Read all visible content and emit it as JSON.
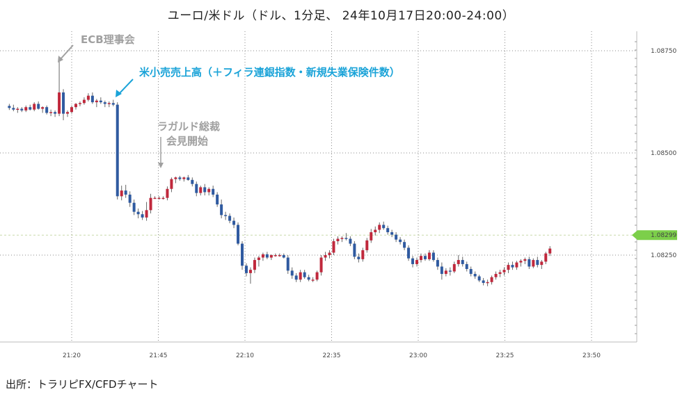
{
  "title": "ユーロ/米ドル（ドル、1分足、 24年10月17日20:00-24:00）",
  "source": "出所：トラリピFX/CFDチャート",
  "colors": {
    "up": "#c0283c",
    "down": "#2f5aa0",
    "grid": "#888888",
    "current_marker": "#7ccf4a",
    "annotation_blue": "#1aa3d8",
    "annotation_gray": "#a0a0a0",
    "current_line": "#c9d9a8"
  },
  "chart_data": {
    "type": "candlestick",
    "title": "ユーロ/米ドル（ドル、1分足、 24年10月17日20:00-24:00）",
    "xlabel": "",
    "ylabel": "",
    "ylim": [
      1.0818,
      1.0878
    ],
    "y_ticks": [
      "1.08750",
      "1.08500",
      "1.08250"
    ],
    "x_ticks": [
      "21:20",
      "21:45",
      "22:10",
      "22:35",
      "23:00",
      "23:25",
      "23:50"
    ],
    "x_tick_minutes": [
      0,
      25,
      50,
      75,
      100,
      125,
      150
    ],
    "current_price": "1.08299",
    "current_value": 1.08299,
    "annotations": [
      {
        "text": "ECB理事会",
        "color": "gray"
      },
      {
        "text": "米小売売上高（＋フィラ連銀指数・新規失業保険件数）",
        "color": "blue"
      },
      {
        "text": "ラガルド総裁",
        "color": "gray"
      },
      {
        "text": "会見開始",
        "color": "gray"
      }
    ],
    "anchors": [
      [
        -18,
        1.08615
      ],
      [
        -14,
        1.0861
      ],
      [
        -10,
        1.0862
      ],
      [
        -7,
        1.0861
      ],
      [
        -5,
        1.0862
      ],
      [
        -3,
        1.086
      ],
      [
        -2,
        1.0861
      ],
      [
        -1,
        1.0865
      ],
      [
        0,
        1.0861
      ],
      [
        2,
        1.0862
      ],
      [
        3,
        1.0863
      ],
      [
        5,
        1.0864
      ],
      [
        7,
        1.0862
      ],
      [
        9,
        1.0863
      ],
      [
        10,
        1.0862
      ],
      [
        11,
        1.084
      ],
      [
        13,
        1.0839
      ],
      [
        15,
        1.0837
      ],
      [
        17,
        1.0835
      ],
      [
        18,
        1.0834
      ],
      [
        20,
        1.0839
      ],
      [
        23,
        1.0839
      ],
      [
        25,
        1.0844
      ],
      [
        27,
        1.0844
      ],
      [
        29,
        1.0843
      ],
      [
        32,
        1.084
      ],
      [
        35,
        1.0839
      ],
      [
        37,
        1.0835
      ],
      [
        38,
        1.0832
      ],
      [
        40,
        1.0832
      ],
      [
        42,
        1.0827
      ],
      [
        44,
        1.0821
      ],
      [
        46,
        1.0822
      ],
      [
        48,
        1.0824
      ],
      [
        50,
        1.0823
      ],
      [
        53,
        1.0823
      ],
      [
        55,
        1.0822
      ],
      [
        57,
        1.0818
      ],
      [
        60,
        1.0818
      ],
      [
        62,
        1.0818
      ],
      [
        64,
        1.082
      ],
      [
        66,
        1.0826
      ],
      [
        70,
        1.0828
      ],
      [
        73,
        1.0828
      ],
      [
        75,
        1.0824
      ],
      [
        77,
        1.0826
      ],
      [
        79,
        1.0831
      ],
      [
        82,
        1.0832
      ],
      [
        84,
        1.0831
      ],
      [
        86,
        1.083
      ],
      [
        88,
        1.0829
      ],
      [
        89,
        1.0831
      ],
      [
        92,
        1.083
      ],
      [
        95,
        1.0829
      ],
      [
        97,
        1.0827
      ],
      [
        99,
        1.0824
      ],
      [
        102,
        1.0823
      ],
      [
        105,
        1.0825
      ],
      [
        107,
        1.0822
      ],
      [
        109,
        1.082
      ],
      [
        111,
        1.0821
      ],
      [
        113,
        1.0823
      ],
      [
        115,
        1.0822
      ],
      [
        117,
        1.0818
      ],
      [
        120,
        1.0818
      ],
      [
        122,
        1.082
      ],
      [
        124,
        1.0821
      ],
      [
        126,
        1.0824
      ],
      [
        128,
        1.0822
      ],
      [
        130,
        1.0823
      ],
      [
        133,
        1.0824
      ],
      [
        135,
        1.0826
      ],
      [
        137,
        1.0826
      ]
    ],
    "candles": [
      [
        1.08615,
        1.0862,
        1.08605,
        1.0861
      ],
      [
        1.0861,
        1.08618,
        1.08602,
        1.08606
      ],
      [
        1.08606,
        1.08612,
        1.08598,
        1.08608
      ],
      [
        1.08608,
        1.08612,
        1.086,
        1.08604
      ],
      [
        1.08604,
        1.08616,
        1.086,
        1.08612
      ],
      [
        1.08612,
        1.08618,
        1.08604,
        1.08606
      ],
      [
        1.08606,
        1.08624,
        1.08602,
        1.0862
      ],
      [
        1.0862,
        1.08626,
        1.08606,
        1.08608
      ],
      [
        1.08608,
        1.08614,
        1.08598,
        1.08612
      ],
      [
        1.08612,
        1.08616,
        1.08594,
        1.08598
      ],
      [
        1.08598,
        1.08606,
        1.0859,
        1.086
      ],
      [
        1.086,
        1.08604,
        1.08588,
        1.08596
      ],
      [
        1.08596,
        1.08724,
        1.0859,
        1.08648
      ],
      [
        1.08648,
        1.08656,
        1.0858,
        1.08596
      ],
      [
        1.08596,
        1.08604,
        1.08588,
        1.086
      ],
      [
        1.086,
        1.08616,
        1.08596,
        1.08612
      ],
      [
        1.08612,
        1.08622,
        1.08606,
        1.0862
      ],
      [
        1.0862,
        1.08626,
        1.08614,
        1.08622
      ],
      [
        1.08622,
        1.08636,
        1.08618,
        1.0863
      ],
      [
        1.0863,
        1.08646,
        1.08626,
        1.0864
      ],
      [
        1.0864,
        1.08648,
        1.0862,
        1.08624
      ],
      [
        1.08624,
        1.08632,
        1.08612,
        1.08628
      ],
      [
        1.08628,
        1.08636,
        1.0862,
        1.08624
      ],
      [
        1.08624,
        1.08628,
        1.08612,
        1.0862
      ],
      [
        1.0862,
        1.08626,
        1.08612,
        1.08622
      ],
      [
        1.08622,
        1.0863,
        1.08614,
        1.08618
      ],
      [
        1.08618,
        1.08624,
        1.08386,
        1.08394
      ],
      [
        1.08394,
        1.0842,
        1.08384,
        1.08408
      ],
      [
        1.08408,
        1.08422,
        1.0839,
        1.08398
      ],
      [
        1.08398,
        1.08406,
        1.08368,
        1.08378
      ],
      [
        1.08378,
        1.08386,
        1.08348,
        1.08356
      ],
      [
        1.08356,
        1.08364,
        1.0834,
        1.0835
      ],
      [
        1.0835,
        1.08358,
        1.08336,
        1.08342
      ],
      [
        1.08342,
        1.0838,
        1.08334,
        1.0836
      ],
      [
        1.0836,
        1.084,
        1.08352,
        1.0839
      ],
      [
        1.0839,
        1.08394,
        1.08388,
        1.0839
      ],
      [
        1.0839,
        1.08394,
        1.08386,
        1.0839
      ],
      [
        1.0839,
        1.08394,
        1.08386,
        1.0839
      ],
      [
        1.0839,
        1.08418,
        1.08384,
        1.08412
      ],
      [
        1.08412,
        1.0844,
        1.08404,
        1.08436
      ],
      [
        1.08436,
        1.08442,
        1.08426,
        1.0844
      ],
      [
        1.0844,
        1.08444,
        1.08432,
        1.08436
      ],
      [
        1.08436,
        1.08442,
        1.0843,
        1.0844
      ],
      [
        1.0844,
        1.08446,
        1.08432,
        1.08434
      ],
      [
        1.08434,
        1.0844,
        1.08418,
        1.08424
      ],
      [
        1.08424,
        1.0843,
        1.08394,
        1.08402
      ],
      [
        1.08402,
        1.0842,
        1.08396,
        1.08416
      ],
      [
        1.08416,
        1.08424,
        1.08396,
        1.08404
      ],
      [
        1.08404,
        1.08416,
        1.08396,
        1.08412
      ],
      [
        1.08412,
        1.0842,
        1.08392,
        1.08398
      ],
      [
        1.08398,
        1.08404,
        1.08368,
        1.08374
      ],
      [
        1.08374,
        1.08386,
        1.0834,
        1.08348
      ],
      [
        1.08348,
        1.08356,
        1.08336,
        1.08346
      ],
      [
        1.08346,
        1.08352,
        1.08328,
        1.08334
      ],
      [
        1.08334,
        1.08342,
        1.08316,
        1.08324
      ],
      [
        1.08324,
        1.0833,
        1.08274,
        1.08278
      ],
      [
        1.08278,
        1.08284,
        1.08214,
        1.08224
      ],
      [
        1.08224,
        1.0823,
        1.08198,
        1.08206
      ],
      [
        1.08206,
        1.0822,
        1.0818,
        1.08214
      ],
      [
        1.08214,
        1.08244,
        1.08206,
        1.08238
      ],
      [
        1.08238,
        1.08248,
        1.08222,
        1.08244
      ],
      [
        1.08244,
        1.08256,
        1.08236,
        1.08252
      ],
      [
        1.08252,
        1.08258,
        1.0824,
        1.08244
      ],
      [
        1.08244,
        1.08252,
        1.08238,
        1.0825
      ],
      [
        1.0825,
        1.08254,
        1.08246,
        1.0825
      ],
      [
        1.0825,
        1.08254,
        1.08246,
        1.0825
      ],
      [
        1.0825,
        1.08254,
        1.08242,
        1.08244
      ],
      [
        1.08244,
        1.0825,
        1.08204,
        1.08212
      ],
      [
        1.08212,
        1.0822,
        1.08192,
        1.082
      ],
      [
        1.082,
        1.08206,
        1.08184,
        1.0819
      ],
      [
        1.0819,
        1.08214,
        1.08184,
        1.08208
      ],
      [
        1.08208,
        1.08214,
        1.08192,
        1.08196
      ],
      [
        1.08196,
        1.08202,
        1.08186,
        1.0819
      ],
      [
        1.0819,
        1.08196,
        1.08184,
        1.0819
      ],
      [
        1.0819,
        1.08212,
        1.08186,
        1.08208
      ],
      [
        1.08208,
        1.0825,
        1.082,
        1.08244
      ],
      [
        1.08244,
        1.08258,
        1.08236,
        1.0825
      ],
      [
        1.0825,
        1.08262,
        1.08242,
        1.08256
      ],
      [
        1.08256,
        1.0829,
        1.0825,
        1.08284
      ],
      [
        1.08284,
        1.08296,
        1.08276,
        1.0829
      ],
      [
        1.0829,
        1.08296,
        1.08282,
        1.08292
      ],
      [
        1.08292,
        1.08304,
        1.08286,
        1.0829
      ],
      [
        1.0829,
        1.08296,
        1.08272,
        1.08278
      ],
      [
        1.08278,
        1.08284,
        1.0824,
        1.08246
      ],
      [
        1.08246,
        1.08254,
        1.08232,
        1.0824
      ],
      [
        1.0824,
        1.08268,
        1.08234,
        1.08262
      ],
      [
        1.08262,
        1.08292,
        1.08256,
        1.08286
      ],
      [
        1.08286,
        1.08314,
        1.0828,
        1.08306
      ],
      [
        1.08306,
        1.0832,
        1.08298,
        1.08312
      ],
      [
        1.08312,
        1.0833,
        1.08304,
        1.08324
      ],
      [
        1.08324,
        1.08332,
        1.08312,
        1.08316
      ],
      [
        1.08316,
        1.08322,
        1.083,
        1.08306
      ],
      [
        1.08306,
        1.08312,
        1.08294,
        1.083
      ],
      [
        1.083,
        1.08306,
        1.08282,
        1.08288
      ],
      [
        1.08288,
        1.08294,
        1.08276,
        1.08282
      ],
      [
        1.08282,
        1.08288,
        1.08262,
        1.08268
      ],
      [
        1.08268,
        1.08274,
        1.08236,
        1.08242
      ],
      [
        1.08242,
        1.08248,
        1.0822,
        1.08228
      ],
      [
        1.08228,
        1.08244,
        1.08222,
        1.08238
      ],
      [
        1.08238,
        1.08254,
        1.08232,
        1.08248
      ],
      [
        1.08248,
        1.08254,
        1.08236,
        1.0824
      ],
      [
        1.0824,
        1.08262,
        1.08236,
        1.08256
      ],
      [
        1.08256,
        1.08262,
        1.08234,
        1.08238
      ],
      [
        1.08238,
        1.08244,
        1.08214,
        1.08222
      ],
      [
        1.08222,
        1.08232,
        1.0819,
        1.08204
      ],
      [
        1.08204,
        1.08218,
        1.08198,
        1.08212
      ],
      [
        1.08212,
        1.0822,
        1.082,
        1.0821
      ],
      [
        1.0821,
        1.08234,
        1.08206,
        1.08228
      ],
      [
        1.08228,
        1.0825,
        1.08222,
        1.08238
      ],
      [
        1.08238,
        1.08246,
        1.08222,
        1.08228
      ],
      [
        1.08228,
        1.08234,
        1.0821,
        1.08216
      ],
      [
        1.08216,
        1.08222,
        1.08198,
        1.08204
      ],
      [
        1.08204,
        1.0821,
        1.08192,
        1.08198
      ],
      [
        1.08198,
        1.08202,
        1.08184,
        1.08188
      ],
      [
        1.08188,
        1.08194,
        1.08176,
        1.08182
      ],
      [
        1.08182,
        1.0819,
        1.08174,
        1.08184
      ],
      [
        1.08184,
        1.082,
        1.08178,
        1.08196
      ],
      [
        1.08196,
        1.0821,
        1.0819,
        1.08204
      ],
      [
        1.08204,
        1.08214,
        1.08196,
        1.08208
      ],
      [
        1.08208,
        1.0822,
        1.082,
        1.08214
      ],
      [
        1.08214,
        1.08232,
        1.08206,
        1.08226
      ],
      [
        1.08226,
        1.08234,
        1.08214,
        1.0822
      ],
      [
        1.0822,
        1.08236,
        1.08214,
        1.08232
      ],
      [
        1.08232,
        1.0824,
        1.08222,
        1.08236
      ],
      [
        1.08236,
        1.08244,
        1.08228,
        1.0824
      ],
      [
        1.0824,
        1.08246,
        1.08216,
        1.08222
      ],
      [
        1.08222,
        1.08242,
        1.08218,
        1.08238
      ],
      [
        1.08238,
        1.08246,
        1.0822,
        1.08226
      ],
      [
        1.08226,
        1.08238,
        1.08216,
        1.08234
      ],
      [
        1.08234,
        1.08258,
        1.08228,
        1.08254
      ],
      [
        1.08254,
        1.08272,
        1.08248,
        1.08266
      ]
    ]
  }
}
